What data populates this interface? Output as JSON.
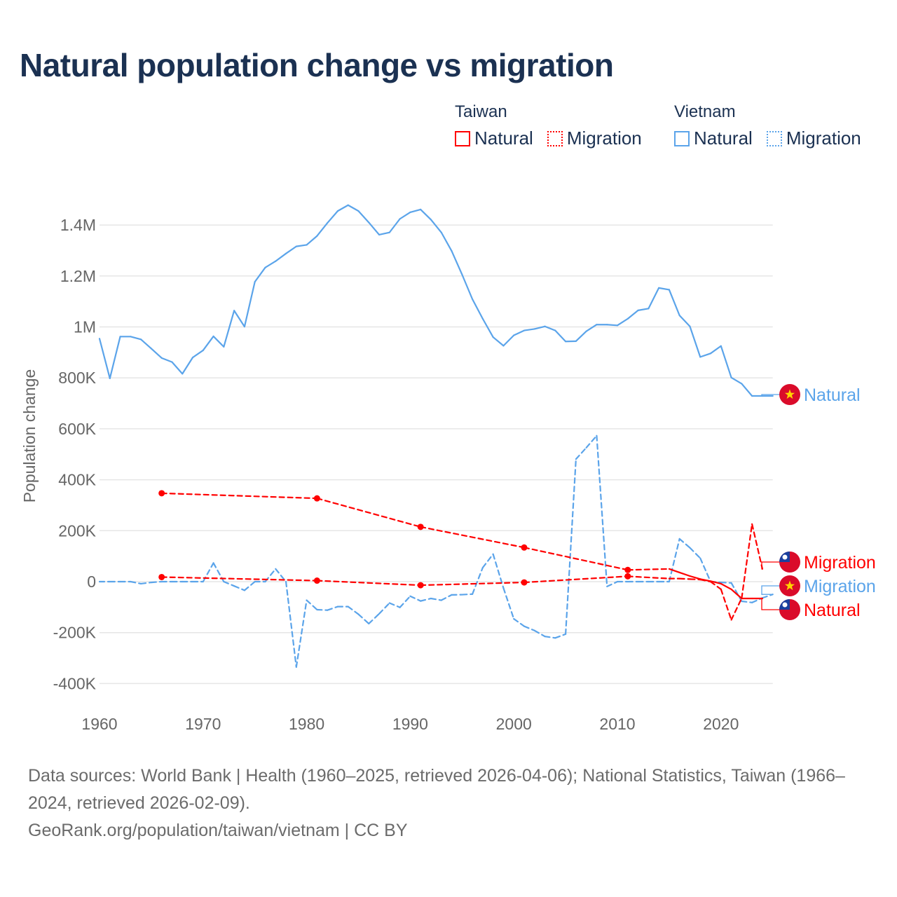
{
  "title": "Natural population change vs migration",
  "legend": {
    "groups": [
      {
        "name": "Taiwan",
        "color": "#ff0000",
        "items": [
          "Natural",
          "Migration"
        ]
      },
      {
        "name": "Vietnam",
        "color": "#5ba4ea",
        "items": [
          "Natural",
          "Migration"
        ]
      }
    ]
  },
  "footer": {
    "sources": "Data sources: World Bank | Health (1960–2025, retrieved 2026-04-06); National Statistics, Taiwan (1966–2024, retrieved 2026-02-09).",
    "credit": "GeoRank.org/population/taiwan/vietnam | CC BY"
  },
  "chart_data": {
    "type": "line",
    "title": "Natural population change vs migration",
    "xlabel": "",
    "ylabel": "Population change",
    "xlim": [
      1960,
      2025
    ],
    "ylim": [
      -500000,
      1500000
    ],
    "x_ticks": [
      1960,
      1970,
      1980,
      1990,
      2000,
      2010,
      2020
    ],
    "x_tick_labels": [
      "1960",
      "1970",
      "1980",
      "1990",
      "2000",
      "2010",
      "2020"
    ],
    "y_ticks": [
      -400000,
      -200000,
      0,
      200000,
      400000,
      600000,
      800000,
      1000000,
      1200000,
      1400000
    ],
    "y_tick_labels": [
      "-400K",
      "-200K",
      "0",
      "200K",
      "400K",
      "600K",
      "800K",
      "1M",
      "1.2M",
      "1.4M"
    ],
    "grid": true,
    "series": [
      {
        "name": "Vietnam Natural",
        "country": "Vietnam",
        "kind": "Natural",
        "label": "Natural",
        "color": "#5ba4ea",
        "flag": "vietnam-flag",
        "x": [
          1960,
          1961,
          1962,
          1963,
          1964,
          1965,
          1966,
          1967,
          1968,
          1969,
          1970,
          1971,
          1972,
          1973,
          1974,
          1975,
          1976,
          1977,
          1978,
          1979,
          1980,
          1981,
          1982,
          1983,
          1984,
          1985,
          1986,
          1987,
          1988,
          1989,
          1990,
          1991,
          1992,
          1993,
          1994,
          1995,
          1996,
          1997,
          1998,
          1999,
          2000,
          2001,
          2002,
          2003,
          2004,
          2005,
          2006,
          2007,
          2008,
          2009,
          2010,
          2011,
          2012,
          2013,
          2014,
          2015,
          2016,
          2017,
          2018,
          2019,
          2020,
          2021,
          2022,
          2023,
          2024,
          2025
        ],
        "y": [
          954000,
          798000,
          962000,
          962000,
          951000,
          915000,
          878000,
          862000,
          816000,
          880000,
          908000,
          963000,
          922000,
          1064000,
          1001000,
          1177000,
          1233000,
          1258000,
          1288000,
          1316000,
          1322000,
          1357000,
          1408000,
          1455000,
          1478000,
          1455000,
          1410000,
          1362000,
          1371000,
          1424000,
          1450000,
          1461000,
          1421000,
          1371000,
          1298000,
          1206000,
          1109000,
          1032000,
          960000,
          926000,
          967000,
          986000,
          992000,
          1002000,
          986000,
          943000,
          944000,
          983000,
          1009000,
          1009000,
          1006000,
          1032000,
          1065000,
          1072000,
          1153000,
          1146000,
          1045000,
          1002000,
          882000,
          896000,
          925000,
          801000,
          777000,
          729000,
          729000,
          729000
        ]
      },
      {
        "name": "Vietnam Migration",
        "country": "Vietnam",
        "kind": "Migration",
        "label": "Migration",
        "color": "#5ba4ea",
        "flag": "vietnam-flag",
        "x": [
          1960,
          1961,
          1962,
          1963,
          1964,
          1965,
          1966,
          1967,
          1968,
          1969,
          1970,
          1971,
          1972,
          1973,
          1974,
          1975,
          1976,
          1977,
          1978,
          1979,
          1980,
          1981,
          1982,
          1983,
          1984,
          1985,
          1986,
          1987,
          1988,
          1989,
          1990,
          1991,
          1992,
          1993,
          1994,
          1995,
          1996,
          1997,
          1998,
          1999,
          2000,
          2001,
          2002,
          2003,
          2004,
          2005,
          2006,
          2007,
          2008,
          2009,
          2010,
          2011,
          2012,
          2013,
          2014,
          2015,
          2016,
          2017,
          2018,
          2019,
          2020,
          2021,
          2022,
          2023,
          2024,
          2025
        ],
        "y": [
          0,
          0,
          0,
          0,
          -8000,
          -3000,
          0,
          0,
          0,
          0,
          0,
          73000,
          0,
          -17000,
          -34000,
          0,
          0,
          50000,
          0,
          -335000,
          -73000,
          -110000,
          -112000,
          -98000,
          -98000,
          -128000,
          -165000,
          -126000,
          -84000,
          -101000,
          -57000,
          -76000,
          -66000,
          -73000,
          -52000,
          -51000,
          -49000,
          55000,
          108000,
          -25000,
          -146000,
          -175000,
          -192000,
          -215000,
          -221000,
          -206000,
          481000,
          526000,
          573000,
          -19000,
          0,
          0,
          0,
          0,
          0,
          0,
          168000,
          133000,
          92000,
          0,
          -3000,
          -5000,
          -77000,
          -82000,
          -64000,
          -50000
        ]
      },
      {
        "name": "Taiwan Natural",
        "country": "Taiwan",
        "kind": "Natural",
        "label": "Natural",
        "color": "#ff0000",
        "flag": "taiwan-flag",
        "x": [
          1966,
          1981,
          1991,
          2001,
          2011,
          2015,
          2016,
          2017,
          2018,
          2019,
          2020,
          2021,
          2022,
          2023,
          2024
        ],
        "y": [
          347000,
          327000,
          215000,
          134000,
          46000,
          50000,
          36000,
          22000,
          10000,
          2000,
          -8000,
          -30000,
          -66000,
          -66000,
          -66000
        ]
      },
      {
        "name": "Taiwan Migration",
        "country": "Taiwan",
        "kind": "Migration",
        "label": "Migration",
        "color": "#ff0000",
        "flag": "taiwan-flag",
        "x": [
          1966,
          1981,
          1991,
          2001,
          2011,
          2015,
          2016,
          2017,
          2018,
          2019,
          2020,
          2021,
          2022,
          2023,
          2024
        ],
        "y": [
          18000,
          4000,
          -14000,
          -3000,
          21000,
          12000,
          12000,
          10000,
          8000,
          0,
          -30000,
          -150000,
          -65000,
          226000,
          50000
        ]
      }
    ],
    "end_labels": [
      {
        "series": "Vietnam Natural",
        "text": "Natural"
      },
      {
        "series": "Taiwan Migration",
        "text": "Migration"
      },
      {
        "series": "Vietnam Migration",
        "text": "Migration"
      },
      {
        "series": "Taiwan Natural",
        "text": "Natural"
      }
    ]
  }
}
